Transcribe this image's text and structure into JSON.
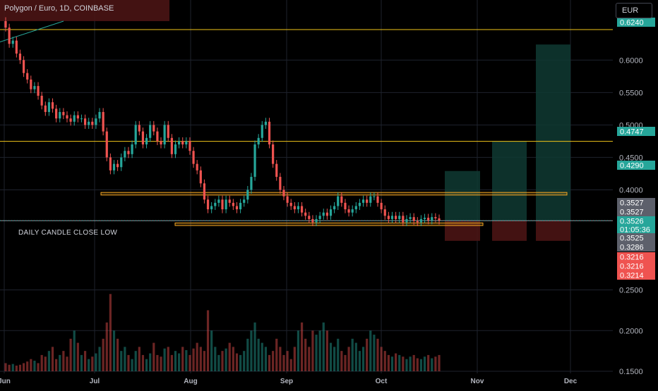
{
  "header": {
    "title": "Polygon / Euro, 1D, COINBASE"
  },
  "currency": {
    "label": "EUR"
  },
  "annotation": {
    "text": "DAILY CANDLE CLOSE LOW"
  },
  "colors": {
    "up": "#26a69a",
    "down": "#ef5350",
    "grid": "#1e222d",
    "axis_text": "#b2b5be",
    "yellow": "#f0c419",
    "orange": "#f5a623",
    "target_zone": "#0f3a33",
    "stop_zone": "#4a1414"
  },
  "chart_data": {
    "type": "candlestick",
    "symbol": "Polygon / Euro",
    "interval": "1D",
    "exchange": "COINBASE",
    "x_tick_labels": [
      "Jun",
      "Jul",
      "Aug",
      "Sep",
      "Oct",
      "Nov",
      "Dec"
    ],
    "price_ticks": [
      "0.6000",
      "0.5500",
      "0.5000",
      "0.4500",
      "0.4000"
    ],
    "volume_ticks": [
      "0.2500",
      "0.2000",
      "0.1500"
    ],
    "price_range": [
      0.318,
      0.66
    ],
    "price_labels": [
      {
        "value": 0.624,
        "text": "0.6240",
        "color": "#26a69a"
      },
      {
        "value": 0.4747,
        "text": "0.4747",
        "color": "#26a69a"
      },
      {
        "value": 0.429,
        "text": "0.4290",
        "color": "#26a69a"
      },
      {
        "value": 0.3527,
        "text": "0.3527",
        "color": "#5d606b"
      },
      {
        "value": 0.3527,
        "text": "0.3527",
        "color": "#5d606b"
      },
      {
        "value": 0.3526,
        "text": "0.3526",
        "color": "#26a69a"
      },
      {
        "value": 0.3526,
        "text": "01:05:36",
        "color": "#26a69a"
      },
      {
        "value": 0.3525,
        "text": "0.3525",
        "color": "#5d606b"
      },
      {
        "value": 0.3286,
        "text": "0.3286",
        "color": "#5d606b"
      },
      {
        "value": 0.3216,
        "text": "0.3216",
        "color": "#ef5350"
      },
      {
        "value": 0.3216,
        "text": "0.3216",
        "color": "#ef5350"
      },
      {
        "value": 0.3214,
        "text": "0.3214",
        "color": "#ef5350"
      }
    ],
    "horizontal_lines": [
      {
        "value": 0.647,
        "color": "yellow"
      },
      {
        "value": 0.4747,
        "color": "yellow"
      },
      {
        "value": 0.3525,
        "color": "gray"
      }
    ],
    "support_zones": [
      {
        "top": 0.396,
        "bottom": 0.392
      },
      {
        "top": 0.349,
        "bottom": 0.345
      }
    ],
    "position_targets": [
      0.429,
      0.4747,
      0.624
    ],
    "position_entry": 0.3527,
    "position_stop": 0.3214,
    "closes": [
      0.65,
      0.625,
      0.63,
      0.61,
      0.6,
      0.58,
      0.57,
      0.555,
      0.56,
      0.545,
      0.53,
      0.52,
      0.535,
      0.525,
      0.51,
      0.52,
      0.515,
      0.51,
      0.505,
      0.515,
      0.51,
      0.51,
      0.5,
      0.505,
      0.5,
      0.51,
      0.52,
      0.49,
      0.45,
      0.43,
      0.44,
      0.435,
      0.45,
      0.46,
      0.455,
      0.47,
      0.5,
      0.49,
      0.47,
      0.48,
      0.5,
      0.49,
      0.475,
      0.47,
      0.5,
      0.48,
      0.455,
      0.47,
      0.475,
      0.47,
      0.475,
      0.46,
      0.44,
      0.43,
      0.41,
      0.385,
      0.37,
      0.375,
      0.38,
      0.385,
      0.37,
      0.385,
      0.38,
      0.375,
      0.37,
      0.38,
      0.385,
      0.4,
      0.42,
      0.47,
      0.48,
      0.5,
      0.505,
      0.47,
      0.44,
      0.42,
      0.4,
      0.39,
      0.38,
      0.375,
      0.37,
      0.375,
      0.365,
      0.36,
      0.355,
      0.35,
      0.355,
      0.36,
      0.365,
      0.36,
      0.37,
      0.375,
      0.39,
      0.38,
      0.37,
      0.365,
      0.37,
      0.375,
      0.38,
      0.385,
      0.38,
      0.39,
      0.39,
      0.38,
      0.37,
      0.36,
      0.355,
      0.36,
      0.355,
      0.36,
      0.35,
      0.355,
      0.358,
      0.352,
      0.35,
      0.355,
      0.357,
      0.353,
      0.358,
      0.356,
      0.3526
    ],
    "volumes": [
      0.16,
      0.158,
      0.159,
      0.157,
      0.158,
      0.16,
      0.162,
      0.165,
      0.163,
      0.16,
      0.17,
      0.168,
      0.175,
      0.18,
      0.165,
      0.17,
      0.175,
      0.168,
      0.19,
      0.2,
      0.185,
      0.17,
      0.175,
      0.165,
      0.168,
      0.172,
      0.18,
      0.19,
      0.21,
      0.245,
      0.2,
      0.19,
      0.175,
      0.18,
      0.17,
      0.165,
      0.175,
      0.18,
      0.17,
      0.165,
      0.172,
      0.185,
      0.17,
      0.168,
      0.178,
      0.18,
      0.17,
      0.175,
      0.172,
      0.18,
      0.176,
      0.17,
      0.178,
      0.185,
      0.18,
      0.175,
      0.225,
      0.2,
      0.18,
      0.17,
      0.175,
      0.178,
      0.185,
      0.18,
      0.172,
      0.17,
      0.175,
      0.19,
      0.2,
      0.21,
      0.19,
      0.185,
      0.18,
      0.17,
      0.175,
      0.19,
      0.18,
      0.17,
      0.175,
      0.165,
      0.18,
      0.2,
      0.21,
      0.19,
      0.18,
      0.2,
      0.195,
      0.2,
      0.21,
      0.2,
      0.185,
      0.18,
      0.19,
      0.175,
      0.17,
      0.18,
      0.19,
      0.185,
      0.175,
      0.18,
      0.19,
      0.2,
      0.195,
      0.19,
      0.18,
      0.175,
      0.17,
      0.168,
      0.172,
      0.17,
      0.168,
      0.165,
      0.168,
      0.17,
      0.166,
      0.165,
      0.168,
      0.17,
      0.166,
      0.168,
      0.17
    ]
  }
}
